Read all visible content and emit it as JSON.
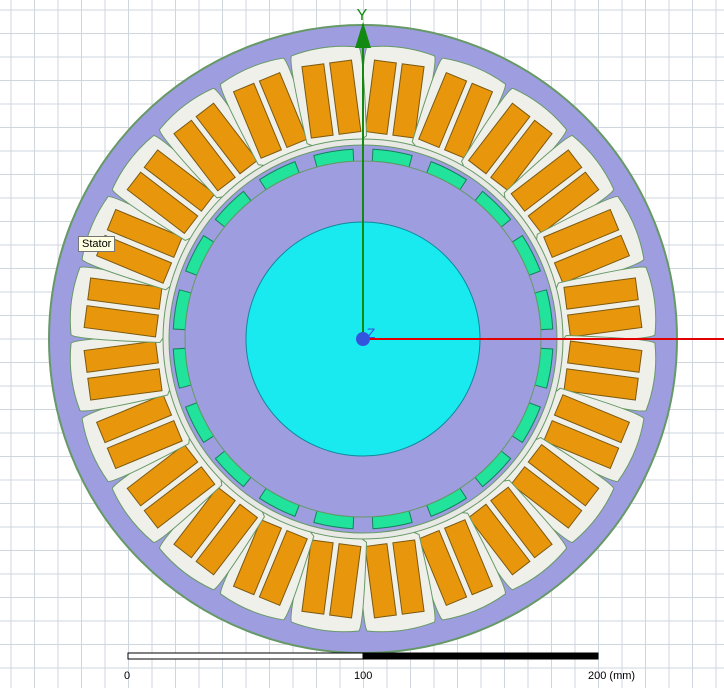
{
  "axes": {
    "y_label": "Y",
    "z_label": "Z",
    "x_color": "#e00000",
    "y_color": "#128a12",
    "origin_color": "#3355dd"
  },
  "tooltip": {
    "text": "Stator"
  },
  "scale_bar": {
    "labels": [
      "0",
      "100",
      "200 (mm)"
    ]
  },
  "model": {
    "stator_slots": 24,
    "rotor_magnets": 20,
    "colors": {
      "stator": "#9d9de0",
      "stator_outline": "#669966",
      "slot": "#f0f0ea",
      "coil": "#e8960c",
      "rotor": "#9d9de0",
      "magnet": "#22e39b",
      "shaft": "#19eaf0",
      "grid": "#cfd6dd",
      "background": "#ffffff"
    }
  }
}
